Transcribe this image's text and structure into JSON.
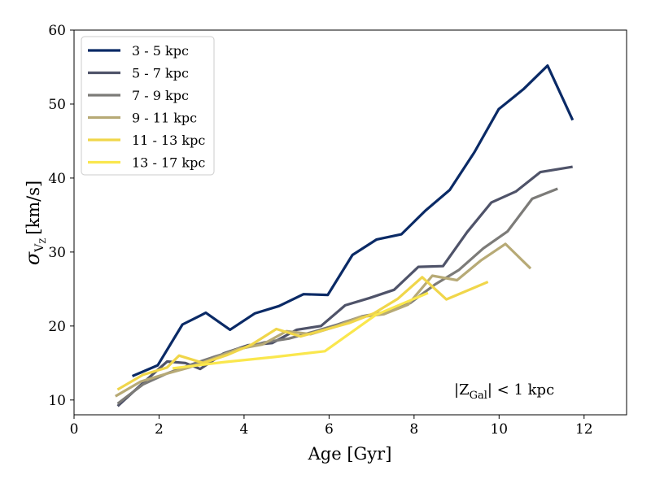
{
  "chart_data": {
    "type": "line",
    "xlabel": "Age [Gyr]",
    "ylabel": "σ",
    "ylabel_sub": "V",
    "ylabel_subsub": "Z",
    "ylabel_unit": "[km/s]",
    "xlim": [
      0,
      13
    ],
    "ylim": [
      8,
      60
    ],
    "xticks": [
      0,
      2,
      4,
      6,
      8,
      10,
      12
    ],
    "yticks": [
      10,
      20,
      30,
      40,
      50,
      60
    ],
    "legend_placement": "top-left",
    "grid": false,
    "annotation": {
      "prefix": "|Z",
      "sub": "Gal",
      "suffix": "| < 1 kpc"
    },
    "series": [
      {
        "name": "3 - 5 kpc",
        "color": "#0a2a66",
        "x": [
          1.4,
          1.97,
          2.55,
          2.97,
          3.1,
          3.67,
          4.25,
          4.82,
          5.4,
          5.97,
          6.55,
          7.12,
          7.7,
          8.27,
          8.84,
          9.42,
          9.99,
          10.57,
          11.14,
          11.72
        ],
        "y": [
          13.3,
          14.7,
          20.2,
          21.4,
          21.8,
          19.5,
          21.7,
          22.7,
          24.3,
          24.2,
          29.6,
          31.7,
          32.4,
          35.6,
          38.4,
          43.5,
          49.3,
          52,
          55.2,
          48
        ]
      },
      {
        "name": "5 - 7 kpc",
        "color": "#4f5369",
        "x": [
          1.05,
          1.62,
          2.19,
          2.62,
          2.97,
          3.52,
          4.09,
          4.66,
          5.24,
          5.81,
          6.38,
          6.96,
          7.53,
          8.1,
          8.68,
          9.25,
          9.82,
          10.4,
          10.97,
          11.7
        ],
        "y": [
          9.3,
          12.3,
          15.2,
          15,
          14.2,
          16.3,
          17.4,
          17.7,
          19.5,
          20,
          22.8,
          23.8,
          24.9,
          28,
          28.1,
          32.7,
          36.7,
          38.2,
          40.8,
          41.5
        ]
      },
      {
        "name": "7 - 9 kpc",
        "color": "#7c7b78",
        "x": [
          1.05,
          1.62,
          2.19,
          2.76,
          3.33,
          3.91,
          4.48,
          5.05,
          5.62,
          6.2,
          6.77,
          7.34,
          7.91,
          8.49,
          9.06,
          9.63,
          10.2,
          10.78,
          11.35
        ],
        "y": [
          9.6,
          12.1,
          13.6,
          14.8,
          15.9,
          16.9,
          17.8,
          18.3,
          19.2,
          20.2,
          21.3,
          21.9,
          23.1,
          25.6,
          27.6,
          30.5,
          32.8,
          37.2,
          38.5
        ]
      },
      {
        "name": "9 - 11 kpc",
        "color": "#b7aa76",
        "x": [
          1.0,
          1.57,
          2.14,
          2.71,
          3.28,
          3.86,
          4.43,
          5.0,
          5.57,
          6.14,
          6.72,
          7.29,
          7.86,
          8.43,
          9.01,
          9.58,
          10.15,
          10.72
        ],
        "y": [
          10.6,
          12.5,
          13.5,
          14.4,
          15.6,
          16.9,
          17.5,
          19.3,
          18.9,
          19.9,
          21.2,
          21.6,
          22.9,
          26.8,
          26.2,
          28.9,
          31.1,
          27.9
        ]
      },
      {
        "name": "11 - 13 kpc",
        "color": "#f0d64a",
        "x": [
          1.05,
          1.62,
          2.19,
          2.47,
          3.04,
          3.61,
          4.18,
          4.76,
          5.33,
          5.9,
          6.47,
          7.05,
          7.62,
          8.19,
          8.76,
          9.34,
          9.71
        ],
        "y": [
          11.5,
          13.4,
          14.4,
          16,
          15,
          16.1,
          17.5,
          19.6,
          18.6,
          19.5,
          20.4,
          21.7,
          23.7,
          26.6,
          23.6,
          25,
          25.9
        ]
      },
      {
        "name": "13 - 17 kpc",
        "color": "#fae74d",
        "x": [
          2.35,
          3.5,
          4.7,
          5.9,
          7.1,
          8.3
        ],
        "y": [
          14.3,
          15.1,
          15.8,
          16.6,
          21.5,
          24.4
        ]
      }
    ]
  }
}
